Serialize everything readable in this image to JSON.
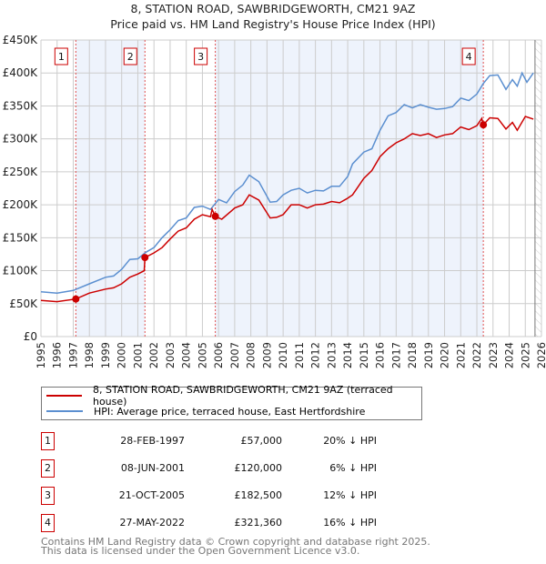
{
  "title_line1": "8, STATION ROAD, SAWBRIDGEWORTH, CM21 9AZ",
  "title_line2": "Price paid vs. HM Land Registry's House Price Index (HPI)",
  "legend": {
    "property": "8, STATION ROAD, SAWBRIDGEWORTH, CM21 9AZ (terraced house)",
    "hpi": "HPI: Average price, terraced house, East Hertfordshire"
  },
  "colors": {
    "property": "#cc0000",
    "hpi": "#5b8fd0",
    "shade": "#eef3fc"
  },
  "sales": [
    {
      "num": "1",
      "date": "28-FEB-1997",
      "price": "£57,000",
      "hpi": "20% ↓ HPI"
    },
    {
      "num": "2",
      "date": "08-JUN-2001",
      "price": "£120,000",
      "hpi": "6% ↓ HPI"
    },
    {
      "num": "3",
      "date": "21-OCT-2005",
      "price": "£182,500",
      "hpi": "12% ↓ HPI"
    },
    {
      "num": "4",
      "date": "27-MAY-2022",
      "price": "£321,360",
      "hpi": "16% ↓ HPI"
    }
  ],
  "footer": {
    "line1": "Contains HM Land Registry data © Crown copyright and database right 2025.",
    "line2": "This data is licensed under the Open Government Licence v3.0."
  },
  "chart_data": {
    "type": "line",
    "title": "8, STATION ROAD, SAWBRIDGEWORTH, CM21 9AZ — Price paid vs. HM Land Registry's House Price Index (HPI)",
    "xlim": [
      1995,
      2026
    ],
    "ylim": [
      0,
      450000
    ],
    "xticks": [
      "1995",
      "1996",
      "1997",
      "1998",
      "1999",
      "2000",
      "2001",
      "2002",
      "2003",
      "2004",
      "2005",
      "2006",
      "2007",
      "2008",
      "2009",
      "2010",
      "2011",
      "2012",
      "2013",
      "2014",
      "2015",
      "2016",
      "2017",
      "2018",
      "2019",
      "2020",
      "2021",
      "2022",
      "2023",
      "2024",
      "2025",
      "2026"
    ],
    "yticks": [
      {
        "v": 0,
        "label": "£0"
      },
      {
        "v": 50000,
        "label": "£50K"
      },
      {
        "v": 100000,
        "label": "£100K"
      },
      {
        "v": 150000,
        "label": "£150K"
      },
      {
        "v": 200000,
        "label": "£200K"
      },
      {
        "v": 250000,
        "label": "£250K"
      },
      {
        "v": 300000,
        "label": "£300K"
      },
      {
        "v": 350000,
        "label": "£350K"
      },
      {
        "v": 400000,
        "label": "£400K"
      },
      {
        "v": 450000,
        "label": "£450K"
      }
    ],
    "grid": true,
    "sale_points": [
      {
        "label": "1",
        "x": 1997.16,
        "y": 57000
      },
      {
        "label": "2",
        "x": 2001.44,
        "y": 120000
      },
      {
        "label": "3",
        "x": 2005.8,
        "y": 182500
      },
      {
        "label": "4",
        "x": 2022.4,
        "y": 321360
      }
    ],
    "shaded_ranges": [
      [
        1997.16,
        2001.44
      ],
      [
        2005.8,
        2022.4
      ]
    ],
    "forecast_from": 2025.6,
    "series": [
      {
        "name": "HPI: Average price, terraced house, East Hertfordshire",
        "color": "#5b8fd0",
        "x": [
          1995,
          1996,
          1997,
          1998,
          1999,
          1999.5,
          2000,
          2000.5,
          2001,
          2001.5,
          2002,
          2002.5,
          2003,
          2003.5,
          2004,
          2004.5,
          2005,
          2005.5,
          2006,
          2006.5,
          2007,
          2007.5,
          2007.9,
          2008.5,
          2009.2,
          2009.6,
          2010,
          2010.5,
          2011,
          2011.5,
          2012,
          2012.5,
          2013,
          2013.5,
          2014,
          2014.3,
          2015,
          2015.5,
          2016,
          2016.5,
          2017,
          2017.5,
          2018,
          2018.5,
          2019,
          2019.5,
          2020,
          2020.5,
          2021,
          2021.5,
          2022,
          2022.4,
          2022.8,
          2023.3,
          2023.8,
          2024.2,
          2024.5,
          2024.8,
          2025.1,
          2025.5
        ],
        "y": [
          68000,
          66000,
          70000,
          80000,
          90000,
          92000,
          102000,
          117000,
          118000,
          128000,
          135000,
          150000,
          162000,
          176000,
          180000,
          196000,
          198000,
          193000,
          208000,
          203000,
          220000,
          230000,
          245000,
          235000,
          204000,
          205000,
          215000,
          222000,
          225000,
          218000,
          222000,
          221000,
          228000,
          228000,
          243000,
          262000,
          280000,
          285000,
          313000,
          335000,
          340000,
          352000,
          347000,
          352000,
          348000,
          345000,
          346000,
          349000,
          362000,
          358000,
          368000,
          384000,
          396000,
          397000,
          375000,
          390000,
          380000,
          400000,
          386000,
          400000
        ]
      },
      {
        "name": "8, STATION ROAD, SAWBRIDGEWORTH, CM21 9AZ (terraced house)",
        "color": "#cc0000",
        "x": [
          1995,
          1996,
          1997.16,
          1998,
          1999,
          1999.5,
          2000,
          2000.5,
          2001,
          2001.4,
          2001.44,
          2002,
          2002.5,
          2003,
          2003.5,
          2004,
          2004.5,
          2005,
          2005.5,
          2005.6,
          2005.8,
          2006.2,
          2007,
          2007.5,
          2007.9,
          2008.5,
          2009.2,
          2009.6,
          2010,
          2010.5,
          2011,
          2011.5,
          2012,
          2012.5,
          2013,
          2013.5,
          2014,
          2014.3,
          2015,
          2015.5,
          2016,
          2016.5,
          2017,
          2017.5,
          2018,
          2018.5,
          2019,
          2019.5,
          2020,
          2020.5,
          2021,
          2021.5,
          2022,
          2022.3,
          2022.4,
          2022.8,
          2023.3,
          2023.8,
          2024.2,
          2024.5,
          2025,
          2025.5
        ],
        "y": [
          55000,
          53000,
          57000,
          66000,
          72000,
          74000,
          80000,
          90000,
          95000,
          100000,
          120000,
          127000,
          135000,
          148000,
          160000,
          165000,
          178000,
          185000,
          182000,
          193000,
          182500,
          178000,
          195000,
          200000,
          215000,
          207000,
          180000,
          181000,
          185000,
          200000,
          200000,
          195000,
          200000,
          201000,
          205000,
          203000,
          210000,
          215000,
          240000,
          252000,
          273000,
          285000,
          294000,
          300000,
          308000,
          305000,
          308000,
          302000,
          306000,
          308000,
          318000,
          314000,
          320000,
          331000,
          321360,
          332000,
          331000,
          315000,
          325000,
          313000,
          334000,
          330000
        ]
      }
    ]
  }
}
